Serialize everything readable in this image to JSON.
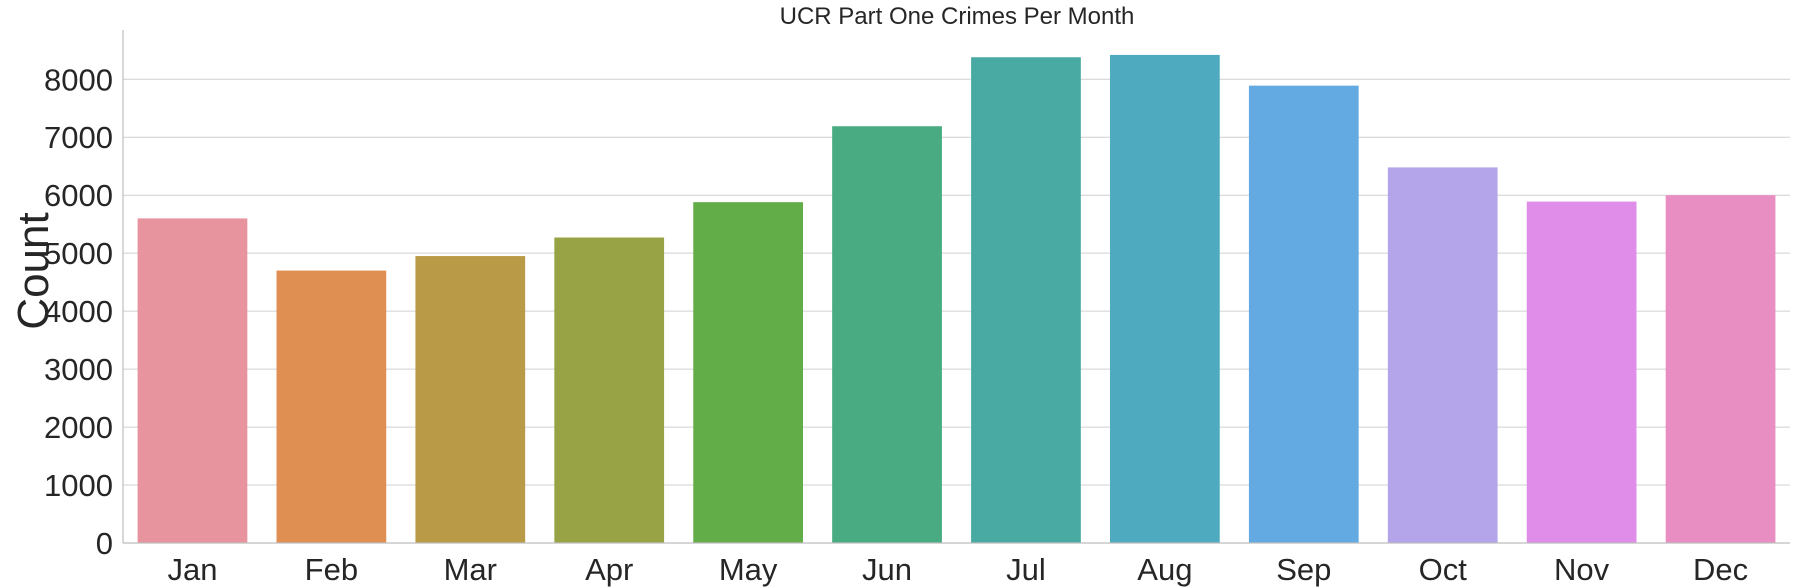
{
  "chart_data": {
    "type": "bar",
    "title": "UCR Part One Crimes Per Month",
    "xlabel": "",
    "ylabel": "Count",
    "categories": [
      "Jan",
      "Feb",
      "Mar",
      "Apr",
      "May",
      "Jun",
      "Jul",
      "Aug",
      "Sep",
      "Oct",
      "Nov",
      "Dec"
    ],
    "values": [
      5600,
      4700,
      4950,
      5270,
      5880,
      7190,
      8380,
      8420,
      7890,
      6480,
      5890,
      6000
    ],
    "colors": [
      "#e8949f",
      "#e08f52",
      "#b89a47",
      "#98a345",
      "#62ad47",
      "#49ab81",
      "#49aaa3",
      "#4eaabe",
      "#64aae2",
      "#b4a5eb",
      "#df8de8",
      "#e98ec3"
    ],
    "ylim": [
      0,
      8850
    ],
    "yticks": [
      0,
      1000,
      2000,
      3000,
      4000,
      5000,
      6000,
      7000,
      8000
    ],
    "grid": "horizontal",
    "legend": "none"
  }
}
